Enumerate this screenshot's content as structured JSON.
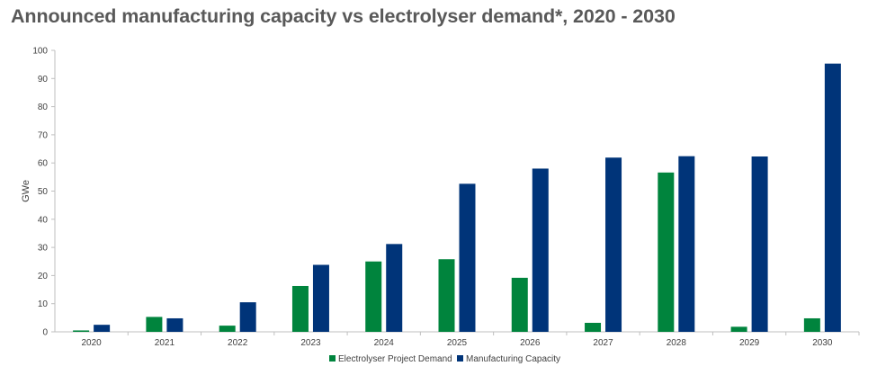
{
  "chart_data": {
    "type": "bar",
    "title": "Announced manufacturing capacity vs electrolyser demand*, 2020 - 2030",
    "xlabel": "",
    "ylabel": "GWe",
    "ylim": [
      0,
      100
    ],
    "yticks": [
      "0",
      "10",
      "20",
      "30",
      "40",
      "50",
      "60",
      "70",
      "80",
      "90",
      "100"
    ],
    "categories": [
      "2020",
      "2021",
      "2022",
      "2023",
      "2024",
      "2025",
      "2026",
      "2027",
      "2028",
      "2029",
      "2030"
    ],
    "series": [
      {
        "name": "Electrolyser Project Demand",
        "color": "#00843d",
        "values": [
          0.5,
          5.3,
          2.2,
          16.3,
          25,
          25.8,
          19.2,
          3.2,
          56.6,
          1.8,
          4.8
        ]
      },
      {
        "name": "Manufacturing Capacity",
        "color": "#003479",
        "values": [
          2.5,
          4.8,
          10.5,
          23.8,
          31.2,
          52.6,
          58,
          61.9,
          62.4,
          62.3,
          95.3
        ]
      }
    ],
    "grid": false,
    "legend": "bottom-center"
  }
}
